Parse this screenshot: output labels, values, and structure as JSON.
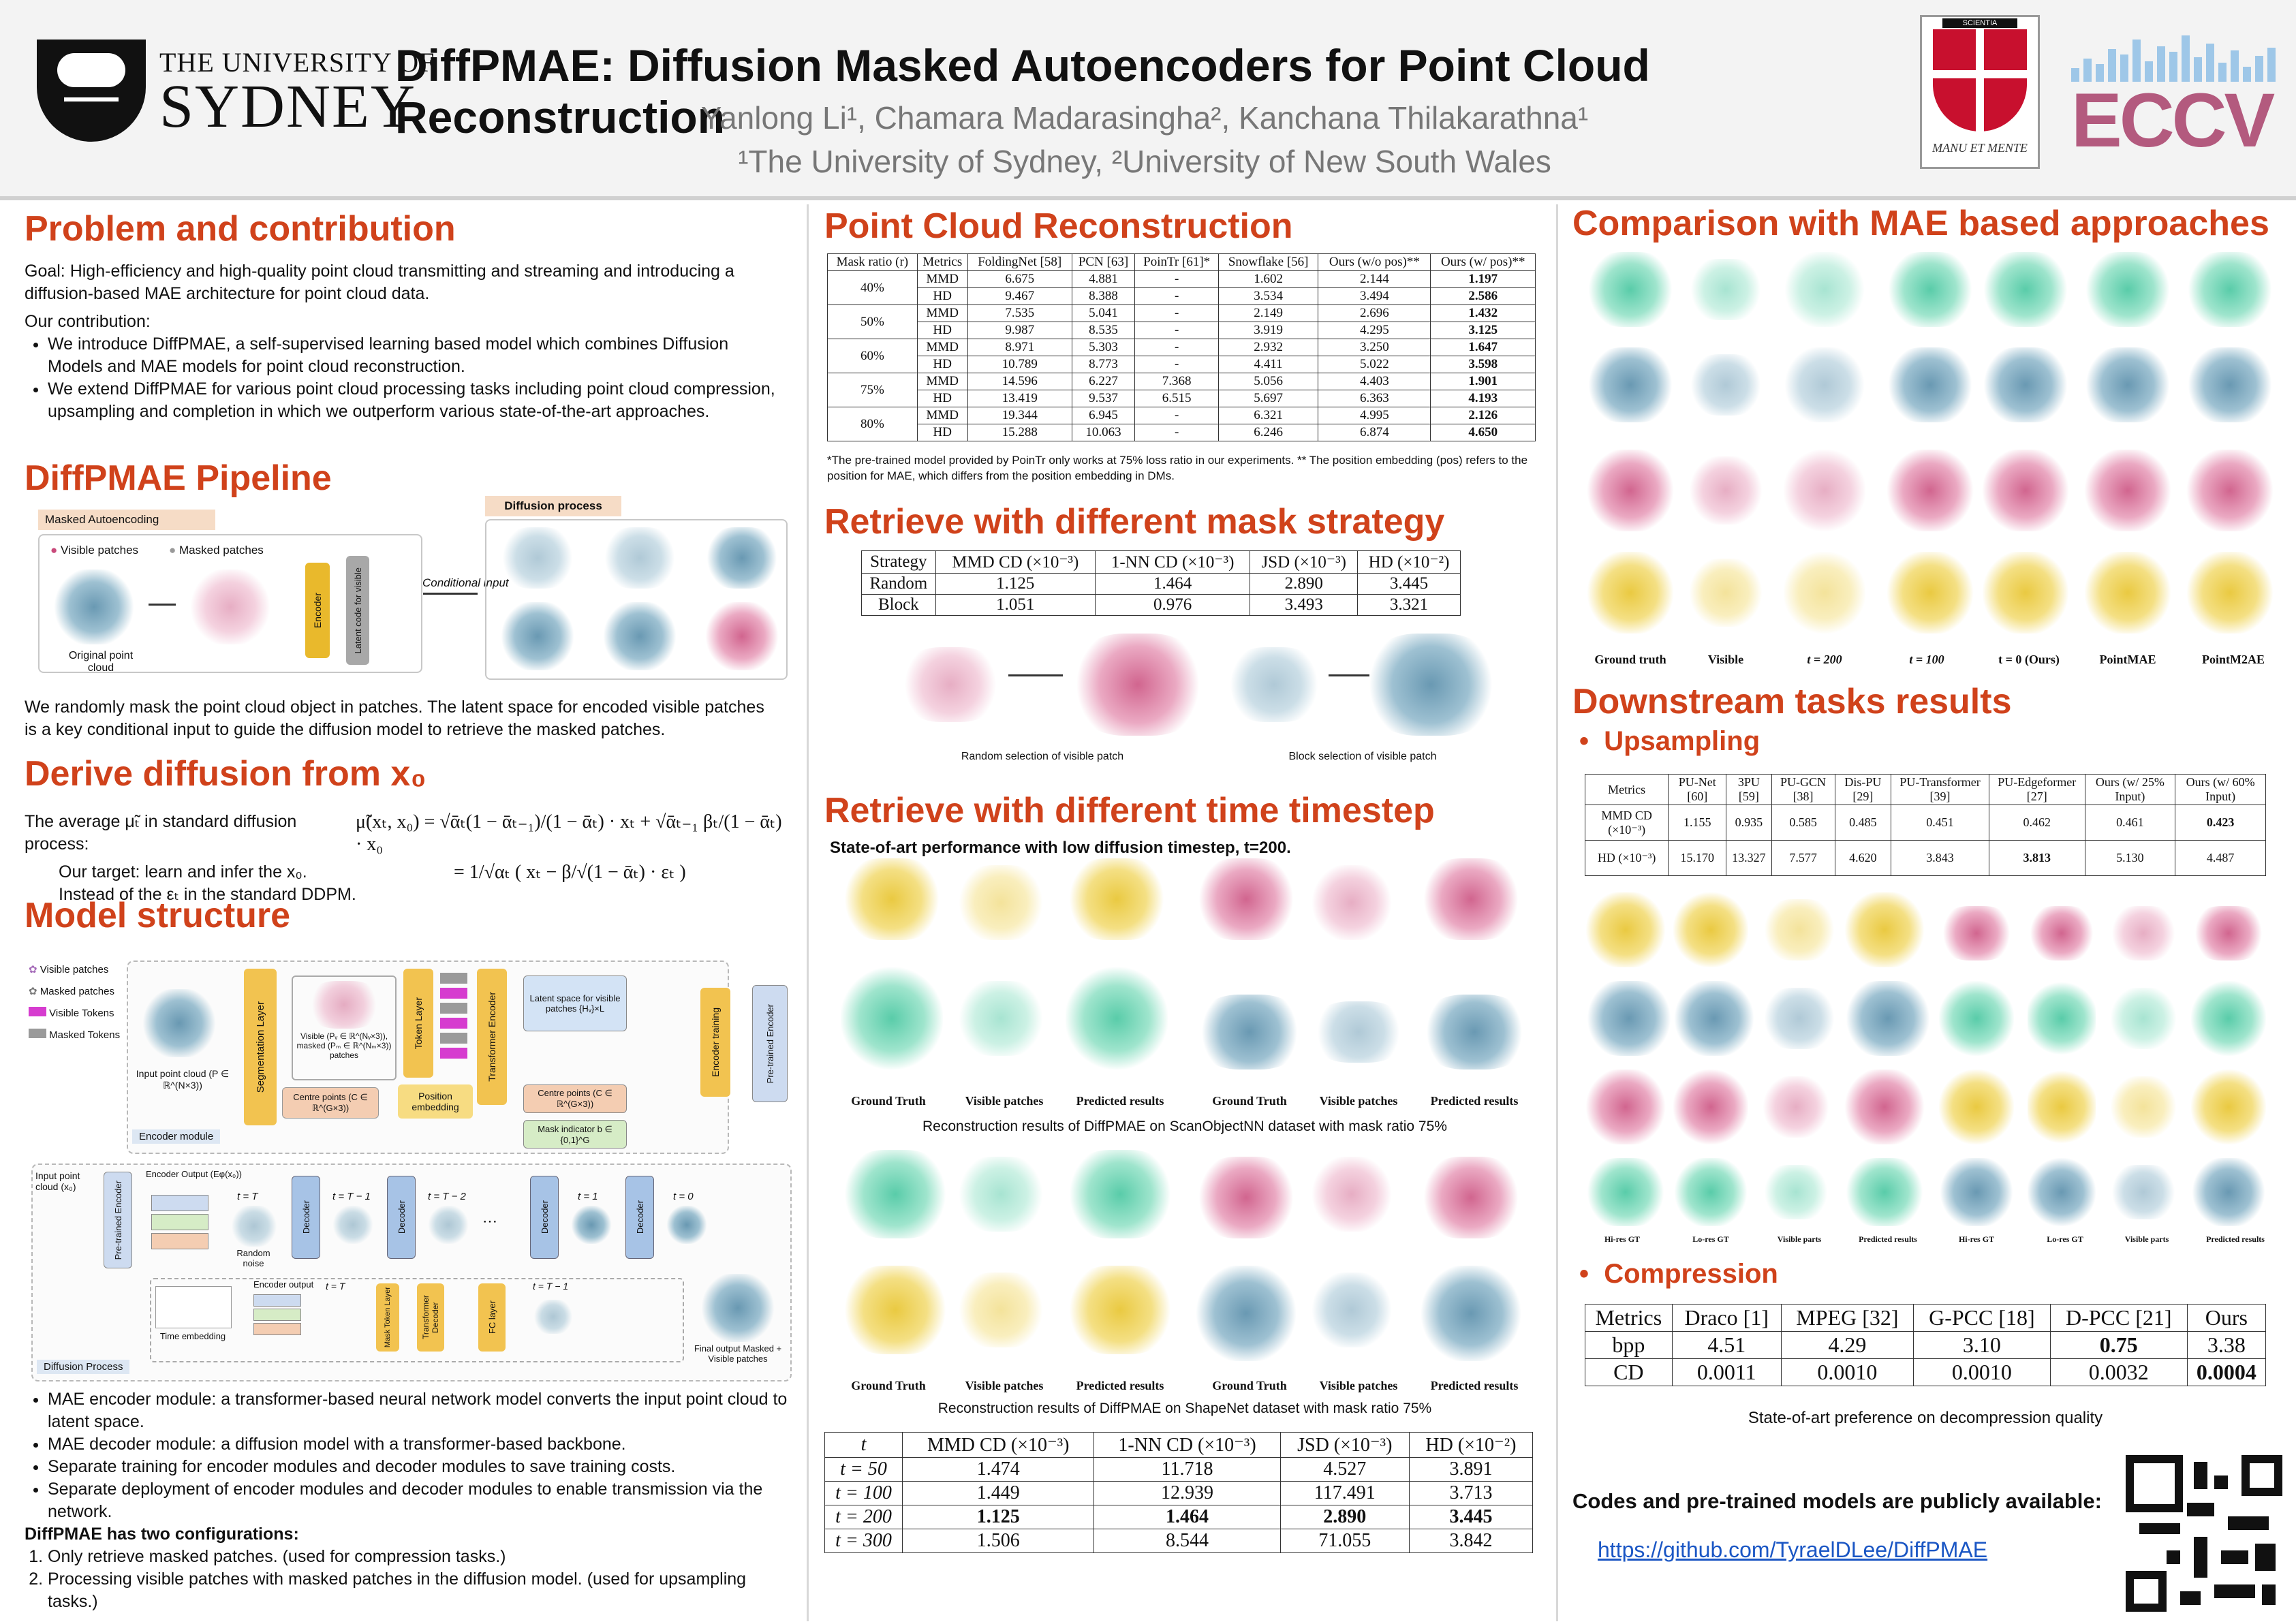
{
  "header": {
    "university_line1": "THE UNIVERSITY OF",
    "university_line2": "SYDNEY",
    "title": "DiffPMAE: Diffusion Masked Autoencoders for Point Cloud Reconstruction",
    "authors": "Yanlong Li¹, Chamara Madarasingha², Kanchana Thilakarathna¹",
    "affiliations": "¹The University of Sydney, ²University of New South Wales",
    "shield_scroll": "SCIENTIA",
    "shield_motto": "MANU ET MENTE",
    "eccv": "ECCV"
  },
  "problem": {
    "heading": "Problem and contribution",
    "goal": "Goal: High-efficiency and high-quality point cloud transmitting and streaming and introducing a diffusion-based MAE architecture for point cloud data.",
    "contrib_label": "Our contribution:",
    "bullets": [
      "We introduce DiffPMAE, a self-supervised learning based model which combines Diffusion Models and MAE models for point cloud reconstruction.",
      "We extend DiffPMAE for various point cloud processing tasks including point cloud compression, upsampling and completion in which we outperform various state-of-the-art approaches."
    ]
  },
  "pipeline": {
    "heading": "DiffPMAE Pipeline",
    "masked_ae": "Masked Autoencoding",
    "visible": "Visible patches",
    "masked": "Masked patches",
    "original": "Original point cloud",
    "encoder": "Encoder",
    "latent": "Latent code for visible",
    "conditional": "Conditional input",
    "diffusion": "Diffusion process",
    "text": "We randomly mask the point cloud object in patches. The latent space for encoded visible patches is a key conditional input to guide the diffusion model to retrieve the masked patches."
  },
  "derive": {
    "heading": "Derive diffusion from x₀",
    "line1": "The average μ̃ₜ in standard diffusion process:",
    "eq1": "μ̃(xₜ, x₀) = √ᾱₜ(1 − ᾱₜ₋₁)/(1 − ᾱₜ) · xₜ + √ᾱₜ₋₁ βₜ/(1 − ᾱₜ) · x₀",
    "line2": "Our target: learn and infer the x₀.",
    "line3": "Instead of the εₜ in the standard DDPM.",
    "eq2": "= 1/√αₜ ( xₜ − β/√(1 − ᾱₜ) · εₜ )"
  },
  "model": {
    "heading": "Model structure",
    "legend": [
      "Visible patches",
      "Masked patches",
      "Visible Tokens",
      "Masked Tokens"
    ],
    "input_label": "Input point cloud (P ∈ ℝ^(N×3))",
    "segmentation": "Segmentation Layer",
    "patch_box": "Visible (Pᵥ ∈ ℝ^(Nᵥ×3)), masked (Pₘ ∈ ℝ^(Nₘ×3)) patches",
    "token": "Token Layer",
    "transformer_enc": "Transformer Encoder",
    "centre": "Centre points (C ∈ ℝ^(G×3))",
    "position": "Position embedding",
    "latent_box": "Latent space for visible patches {Hᵥ}×L",
    "centre2": "Centre points (C ∈ ℝ^(G×3))",
    "mask_ind": "Mask indicator b ∈ {0,1}^G",
    "enc_training": "Encoder training",
    "pretrained": "Pre-trained Encoder",
    "encoder_module": "Encoder module",
    "dec_input": "Input point cloud (x₀)",
    "pre_enc": "Pre-trained Encoder",
    "enc_out": "Encoder Output (Eφ(x₀))",
    "t_T": "t = T",
    "t_T1": "t = T − 1",
    "t_T2": "t = T − 2",
    "t_1": "t = 1",
    "t_0": "t = 0",
    "random_noise": "Random noise",
    "decoder": "Decoder",
    "enc_output": "Encoder output",
    "time_emb": "Time embedding",
    "mask_token": "Mask Token Layer",
    "transformer_dec": "Transformer Decoder",
    "fc": "FC layer",
    "final": "Final output Masked + Visible patches",
    "diffusion_process": "Diffusion Process",
    "bullets": [
      "MAE encoder module: a transformer-based neural network model converts the input point cloud to latent space.",
      "MAE decoder module: a diffusion model with a transformer-based backbone.",
      "Separate training for encoder modules and decoder modules to save training costs.",
      "Separate deployment of encoder modules and decoder modules to enable transmission via the network."
    ],
    "configs_label": "DiffPMAE has two configurations:",
    "configs": [
      "Only retrieve masked patches. (used for compression tasks.)",
      "Processing visible patches with masked patches in the diffusion model. (used for upsampling tasks.)"
    ]
  },
  "reconstruction": {
    "heading": "Point Cloud Reconstruction",
    "columns": [
      "Mask ratio (r)",
      "Metrics",
      "FoldingNet [58]",
      "PCN [63]",
      "PoinTr [61]*",
      "Snowflake [56]",
      "Ours (w/o pos)**",
      "Ours (w/ pos)**"
    ],
    "rows": [
      {
        "ratio": "40%",
        "m1": [
          "MMD",
          "6.675",
          "4.881",
          "-",
          "1.602",
          "2.144",
          "1.197"
        ],
        "m2": [
          "HD",
          "9.467",
          "8.388",
          "-",
          "3.534",
          "3.494",
          "2.586"
        ]
      },
      {
        "ratio": "50%",
        "m1": [
          "MMD",
          "7.535",
          "5.041",
          "-",
          "2.149",
          "2.696",
          "1.432"
        ],
        "m2": [
          "HD",
          "9.987",
          "8.535",
          "-",
          "3.919",
          "4.295",
          "3.125"
        ]
      },
      {
        "ratio": "60%",
        "m1": [
          "MMD",
          "8.971",
          "5.303",
          "-",
          "2.932",
          "3.250",
          "1.647"
        ],
        "m2": [
          "HD",
          "10.789",
          "8.773",
          "-",
          "4.411",
          "5.022",
          "3.598"
        ]
      },
      {
        "ratio": "75%",
        "m1": [
          "MMD",
          "14.596",
          "6.227",
          "7.368",
          "5.056",
          "4.403",
          "1.901"
        ],
        "m2": [
          "HD",
          "13.419",
          "9.537",
          "6.515",
          "5.697",
          "6.363",
          "4.193"
        ]
      },
      {
        "ratio": "80%",
        "m1": [
          "MMD",
          "19.344",
          "6.945",
          "-",
          "6.321",
          "4.995",
          "2.126"
        ],
        "m2": [
          "HD",
          "15.288",
          "10.063",
          "-",
          "6.246",
          "6.874",
          "4.650"
        ]
      }
    ],
    "footnote": "*The pre-trained model provided by PoinTr only works at 75% loss ratio in our experiments. ** The position embedding (pos) refers to the position for MAE, which differs from the position embedding in DMs."
  },
  "mask_strategy": {
    "heading": "Retrieve with different mask strategy",
    "columns": [
      "Strategy",
      "MMD CD (×10⁻³)",
      "1-NN CD (×10⁻³)",
      "JSD (×10⁻³)",
      "HD (×10⁻²)"
    ],
    "rows": [
      [
        "Random",
        "1.125",
        "1.464",
        "2.890",
        "3.445"
      ],
      [
        "Block",
        "1.051",
        "0.976",
        "3.493",
        "3.321"
      ]
    ],
    "cap_random": "Random selection of visible patch",
    "cap_block": "Block selection of visible patch"
  },
  "timestep": {
    "heading": "Retrieve with different time timestep",
    "subheading": "State-of-art performance with low diffusion timestep, t=200.",
    "labels": [
      "Ground Truth",
      "Visible patches",
      "Predicted results",
      "Ground Truth",
      "Visible patches",
      "Predicted results"
    ],
    "labels2": [
      "Ground Truth",
      "Visible patches",
      "Predicted results",
      "Ground Truth",
      "Visible patches",
      "Predicted results"
    ],
    "cap1": "Reconstruction results of DiffPMAE on ScanObjectNN dataset with mask ratio 75%",
    "cap2": "Reconstruction results of DiffPMAE on ShapeNet dataset with mask ratio 75%",
    "columns": [
      "t",
      "MMD CD (×10⁻³)",
      "1-NN CD (×10⁻³)",
      "JSD (×10⁻³)",
      "HD (×10⁻²)"
    ],
    "rows": [
      [
        "t = 50",
        "1.474",
        "11.718",
        "4.527",
        "3.891"
      ],
      [
        "t = 100",
        "1.449",
        "12.939",
        "117.491",
        "3.713"
      ],
      [
        "t = 200",
        "1.125",
        "1.464",
        "2.890",
        "3.445"
      ],
      [
        "t = 300",
        "1.506",
        "8.544",
        "71.055",
        "3.842"
      ]
    ]
  },
  "comparison": {
    "heading": "Comparison with MAE based approaches",
    "labels": [
      "Ground truth",
      "Visible",
      "t = 200",
      "t = 100",
      "t = 0 (Ours)",
      "PointMAE",
      "PointM2AE"
    ]
  },
  "downstream": {
    "heading": "Downstream tasks results",
    "upsampling": "Upsampling",
    "up_columns": [
      "Metrics",
      "PU-Net [60]",
      "3PU [59]",
      "PU-GCN [38]",
      "Dis-PU [29]",
      "PU-Transformer [39]",
      "PU-Edgeformer [27]",
      "Ours (w/ 25% Input)",
      "Ours (w/ 60% Input)"
    ],
    "up_rows": [
      [
        "MMD CD (×10⁻³)",
        "1.155",
        "0.935",
        "0.585",
        "0.485",
        "0.451",
        "0.462",
        "0.461",
        "0.423"
      ],
      [
        "HD (×10⁻³)",
        "15.170",
        "13.327",
        "7.577",
        "4.620",
        "3.843",
        "3.813",
        "5.130",
        "4.487"
      ]
    ],
    "up_labels": [
      "Hi-res GT",
      "Lo-res GT",
      "Visible parts",
      "Predicted results",
      "Hi-res GT",
      "Lo-res GT",
      "Visible parts",
      "Predicted results"
    ],
    "compression": "Compression",
    "comp_columns": [
      "Metrics",
      "Draco [1]",
      "MPEG [32]",
      "G-PCC [18]",
      "D-PCC [21]",
      "Ours"
    ],
    "comp_rows": [
      [
        "bpp",
        "4.51",
        "4.29",
        "3.10",
        "0.75",
        "3.38"
      ],
      [
        "CD",
        "0.0011",
        "0.0010",
        "0.0010",
        "0.0032",
        "0.0004"
      ]
    ],
    "comp_caption": "State-of-art preference on decompression quality",
    "codes": "Codes and pre-trained models are publicly available:",
    "link": "https://github.com/TyraelDLee/DiffPMAE"
  },
  "colors": {
    "heading": "#d0421b",
    "green": "#3cc39a",
    "blue": "#4f87a5",
    "pink": "#c94a7b",
    "yellow": "#e6c020",
    "link": "#1a56c4"
  }
}
